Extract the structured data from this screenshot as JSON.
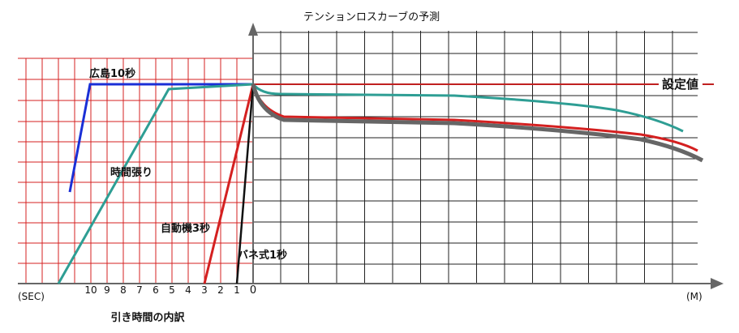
{
  "chart_data": {
    "type": "line",
    "title": "テンションロスカーブの予測",
    "left_axis_label": "(SEC)",
    "right_axis_label": "(M)",
    "bottom_label": "引き時間の内訳",
    "left_ticks": [
      "10",
      "9",
      "8",
      "7",
      "6",
      "5",
      "4",
      "3",
      "2",
      "1"
    ],
    "origin_label": "0",
    "setpoint_label": "設定値",
    "grid": true,
    "pull_phase_series": [
      {
        "name": "広島10秒",
        "color": "#1a2fd6"
      },
      {
        "name": "時間張り",
        "color": "#2e9e94"
      },
      {
        "name": "自動機3秒",
        "color": "#d42020"
      },
      {
        "name": "バネ式1秒",
        "color": "#111111"
      }
    ],
    "tension_curves": [
      {
        "color": "#2e9e94"
      },
      {
        "color": "#d42020"
      },
      {
        "color": "#666666"
      }
    ]
  }
}
